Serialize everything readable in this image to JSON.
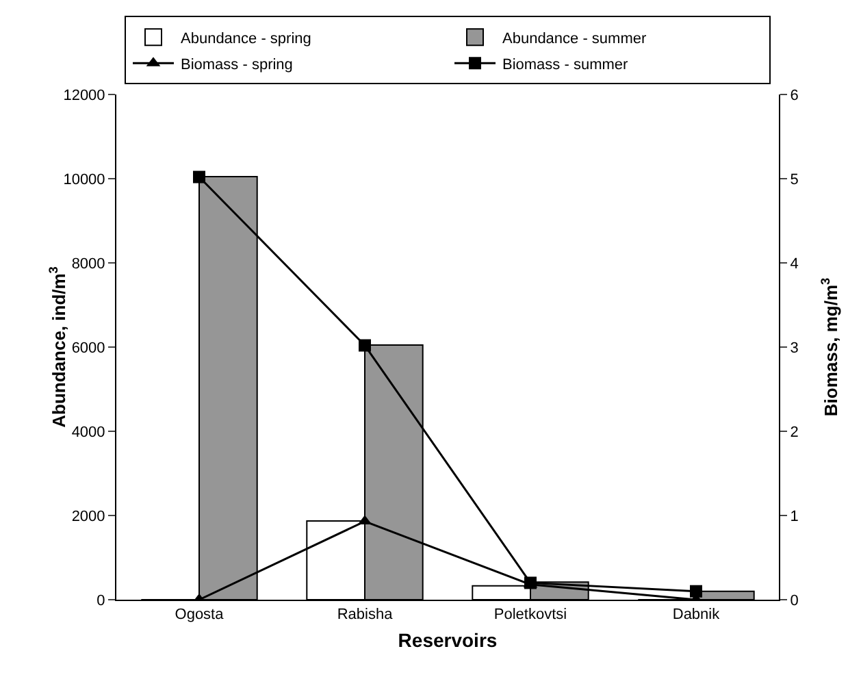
{
  "chart_data": {
    "type": "bar",
    "xlabel": "Reservoirs",
    "ylabel": "Abundance, ind/m$^{3}$",
    "y2label": "Biomass, mg/m$^{3}$",
    "categories": [
      "Ogosta",
      "Rabisha",
      "Poletkovtsi",
      "Dabnik"
    ],
    "series": [
      {
        "name": "Abundance - spring",
        "color": "#ffffff",
        "values": [
          0,
          1870,
          330,
          0
        ]
      },
      {
        "name": "Abundance - summer",
        "color": "#969696",
        "values": [
          10050,
          6050,
          420,
          200
        ]
      },
      {
        "name": "Biomass - spring",
        "type": "line",
        "axis": "y2",
        "color": "#000000",
        "marker": "triangle",
        "values": [
          0,
          0.93,
          0.18,
          0
        ]
      },
      {
        "name": "Biomass - summer",
        "type": "line",
        "axis": "y2",
        "color": "#000000",
        "marker": "square",
        "values": [
          5.02,
          3.02,
          0.2,
          0.1
        ]
      }
    ],
    "ylim": [
      0,
      12000
    ],
    "yticks": [
      0,
      2000,
      4000,
      6000,
      8000,
      10000,
      12000
    ],
    "y2lim": [
      0,
      6
    ],
    "y2ticks": [
      0,
      1,
      2,
      3,
      4,
      5,
      6
    ],
    "grid": false,
    "legend": "top"
  }
}
